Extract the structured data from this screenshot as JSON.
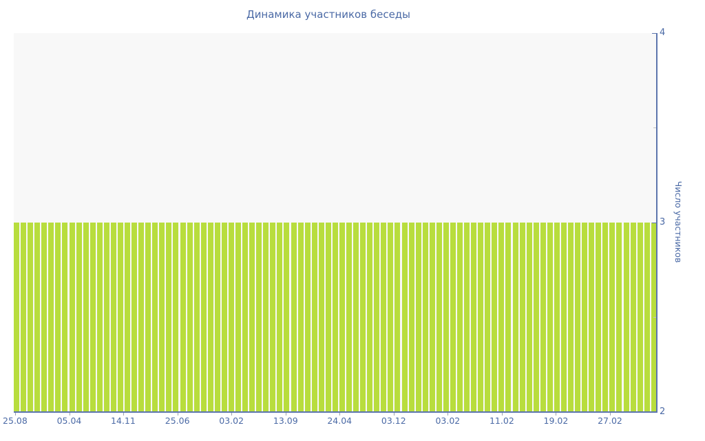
{
  "chart_data": {
    "type": "bar",
    "title": "Динамика участников беседы",
    "ylabel": "Число участников",
    "xlabel": "",
    "values": [
      3,
      3,
      3,
      3,
      3,
      3,
      3,
      3,
      3,
      3,
      3,
      3,
      3,
      3,
      3,
      3,
      3,
      3,
      3,
      3,
      3,
      3,
      3,
      3,
      3,
      3,
      3,
      3,
      3,
      3,
      3,
      3,
      3,
      3,
      3,
      3,
      3,
      3,
      3,
      3,
      3,
      3,
      3,
      3,
      3,
      3,
      3,
      3,
      3,
      3,
      3,
      3,
      3,
      3,
      3,
      3,
      3,
      3,
      3,
      3,
      3,
      3,
      3,
      3,
      3,
      3,
      3,
      3,
      3,
      3,
      3,
      3,
      3,
      3,
      3,
      3,
      3,
      3,
      3,
      3,
      3,
      3,
      3,
      3,
      3,
      3,
      3,
      3,
      3,
      3,
      3,
      3,
      3
    ],
    "x_tick_labels": [
      "25.08",
      "05.04",
      "14.11",
      "25.06",
      "03.02",
      "13.09",
      "24.04",
      "03.12",
      "03.02",
      "11.02",
      "19.02",
      "27.02"
    ],
    "x_tick_positions_pct": [
      0.21,
      8.62,
      17.02,
      25.45,
      33.85,
      42.27,
      50.67,
      59.08,
      67.49,
      75.9,
      84.31,
      92.72
    ],
    "ylim": [
      2,
      4
    ],
    "y_major_ticks": [
      4,
      3,
      2
    ],
    "y_minor_ticks": [
      3.5,
      2.5
    ],
    "legend": false,
    "grid": false,
    "y_axis_position": "right",
    "colors": {
      "bar": "#b8dd3d",
      "plot_background": "#f8f8f8",
      "axis_line": "#5b74ad",
      "text": "#4a69a5",
      "minor_tick": "#c2c2c2",
      "x_tick": "#9aa2ad"
    }
  }
}
